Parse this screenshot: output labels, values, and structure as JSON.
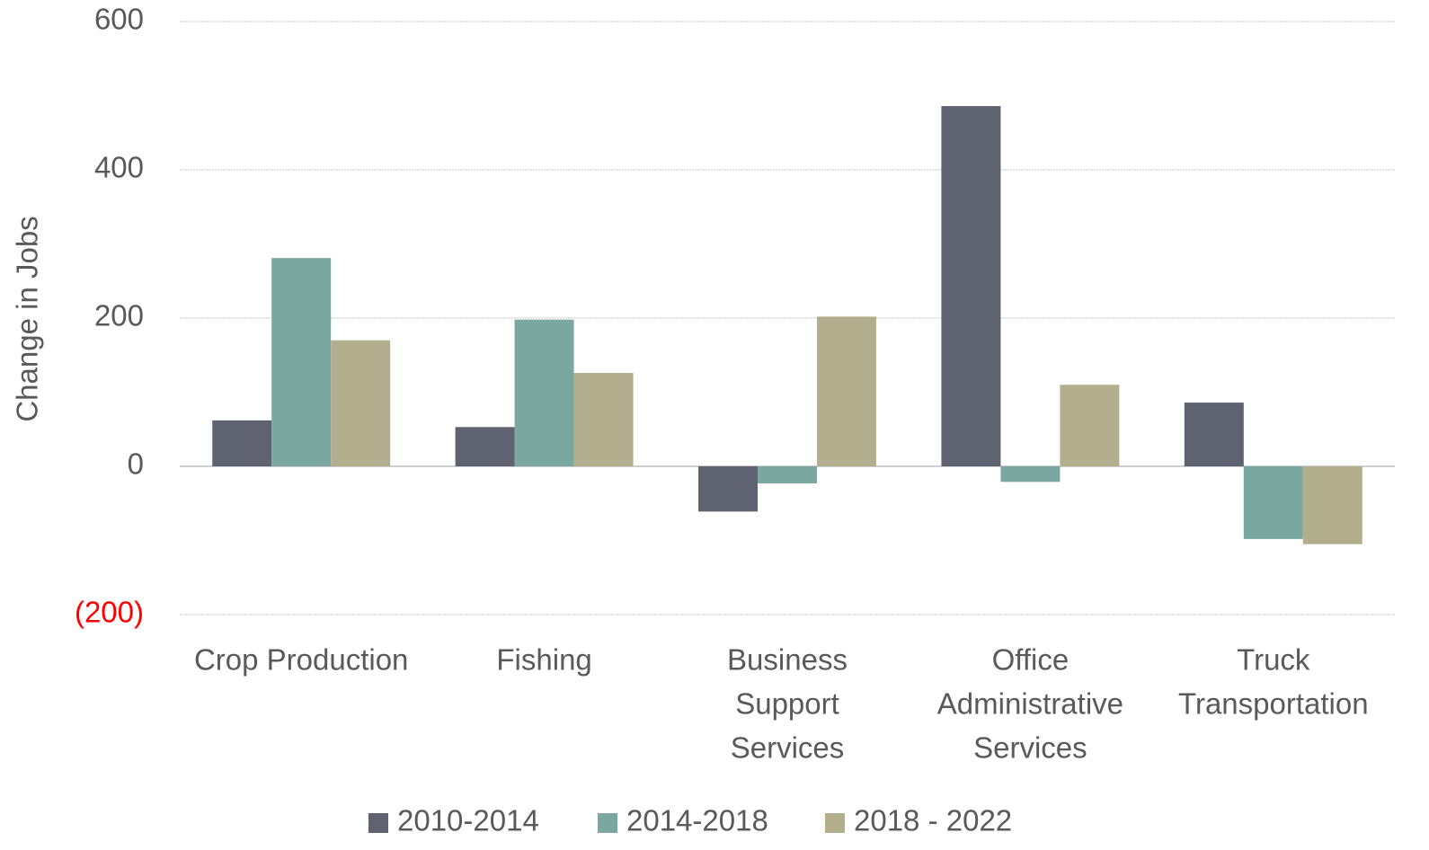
{
  "chart_data": {
    "type": "bar",
    "y_axis_label": "Change in Jobs",
    "categories": [
      [
        "Crop Production"
      ],
      [
        "Fishing"
      ],
      [
        "Business",
        "Support",
        "Services"
      ],
      [
        "Office",
        "Administrative",
        "Services"
      ],
      [
        "Truck",
        "Transportation"
      ]
    ],
    "series": [
      {
        "name": "2010-2014",
        "color": "#5f6271",
        "values": [
          62,
          53,
          -61,
          486,
          86
        ]
      },
      {
        "name": "2014-2018",
        "color": "#7ba7a1",
        "values": [
          281,
          198,
          -23,
          -21,
          -98
        ]
      },
      {
        "name": "2018 - 2022",
        "color": "#b3ae8e",
        "values": [
          170,
          126,
          202,
          110,
          -105
        ]
      }
    ],
    "ylim": [
      -200,
      600
    ],
    "yticks": [
      600,
      400,
      200,
      0,
      {
        "value": -200,
        "label": "(200)"
      }
    ],
    "negative_tick_color": "#ff0000",
    "grid": true,
    "legend": "bottom"
  }
}
